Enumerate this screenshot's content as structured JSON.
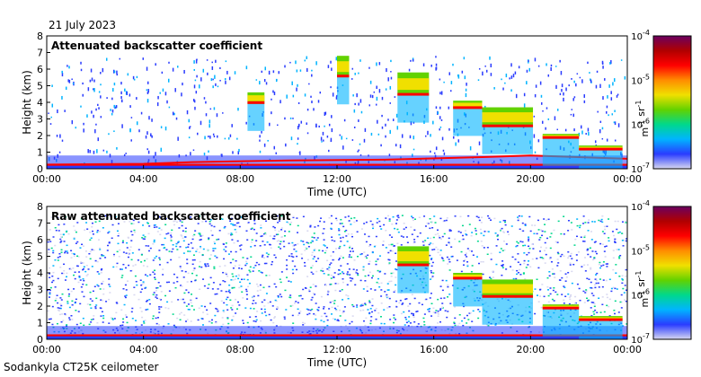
{
  "header": {
    "date": "21 July 2023"
  },
  "footer": {
    "instrument": "Sodankyla CT25K ceilometer"
  },
  "colormap": [
    "#d8d8f0",
    "#2a3cff",
    "#00b4ff",
    "#00d88c",
    "#62d200",
    "#f0e000",
    "#ff8c00",
    "#ff0000",
    "#b00000",
    "#6a0060"
  ],
  "chart_data": [
    {
      "type": "heatmap",
      "title": "Attenuated backscatter coefficient",
      "xlabel": "Time (UTC)",
      "ylabel": "Height (km)",
      "x_ticks": [
        "00:00",
        "04:00",
        "08:00",
        "12:00",
        "16:00",
        "20:00",
        "00:00"
      ],
      "x_range_hours": [
        0,
        24
      ],
      "y_ticks": [
        0,
        1,
        2,
        3,
        4,
        5,
        6,
        7,
        8
      ],
      "ylim": [
        0,
        8
      ],
      "colorbar": {
        "label": "m-1 sr-1",
        "min_exp": -7,
        "max_exp": -4,
        "tick_labels": [
          "10-4",
          "10-5",
          "10-6",
          "10-7"
        ]
      },
      "features": {
        "surface_layer_top_km": 0.3,
        "boundary_layer": [
          [
            0,
            0.25
          ],
          [
            4,
            0.3
          ],
          [
            6,
            0.4
          ],
          [
            10,
            0.5
          ],
          [
            14,
            0.55
          ],
          [
            18,
            0.7
          ],
          [
            20,
            0.8
          ],
          [
            24,
            0.6
          ]
        ],
        "cloud_layers": [
          {
            "start_h": 8.3,
            "end_h": 9.0,
            "base_km": 3.9,
            "top_km": 4.6
          },
          {
            "start_h": 12.0,
            "end_h": 12.5,
            "base_km": 5.5,
            "top_km": 6.8
          },
          {
            "start_h": 14.5,
            "end_h": 15.8,
            "base_km": 4.4,
            "top_km": 5.8
          },
          {
            "start_h": 16.8,
            "end_h": 18.0,
            "base_km": 3.6,
            "top_km": 4.1
          },
          {
            "start_h": 18.0,
            "end_h": 20.1,
            "base_km": 2.5,
            "top_km": 3.7
          },
          {
            "start_h": 20.5,
            "end_h": 22.0,
            "base_km": 1.8,
            "top_km": 2.1
          },
          {
            "start_h": 22.0,
            "end_h": 23.8,
            "base_km": 1.1,
            "top_km": 1.4
          }
        ]
      }
    },
    {
      "type": "heatmap",
      "title": "Raw attenuated backscatter coefficient",
      "xlabel": "Time (UTC)",
      "ylabel": "Height (km)",
      "x_ticks": [
        "00:00",
        "04:00",
        "08:00",
        "12:00",
        "16:00",
        "20:00",
        "00:00"
      ],
      "x_range_hours": [
        0,
        24
      ],
      "y_ticks": [
        0,
        1,
        2,
        3,
        4,
        5,
        6,
        7,
        8
      ],
      "ylim": [
        0,
        8
      ],
      "colorbar": {
        "label": "m-1 sr-1",
        "min_exp": -7,
        "max_exp": -4,
        "tick_labels": [
          "10-4",
          "10-5",
          "10-6",
          "10-7"
        ]
      },
      "features": {
        "noise_top_km": 7.5,
        "surface_layer_top_km": 0.3,
        "cloud_layers": [
          {
            "start_h": 14.5,
            "end_h": 15.8,
            "base_km": 4.4,
            "top_km": 5.6
          },
          {
            "start_h": 16.8,
            "end_h": 18.0,
            "base_km": 3.6,
            "top_km": 4.0
          },
          {
            "start_h": 18.0,
            "end_h": 20.1,
            "base_km": 2.5,
            "top_km": 3.6
          },
          {
            "start_h": 20.5,
            "end_h": 22.0,
            "base_km": 1.8,
            "top_km": 2.1
          },
          {
            "start_h": 22.0,
            "end_h": 23.8,
            "base_km": 1.1,
            "top_km": 1.4
          }
        ]
      }
    }
  ]
}
